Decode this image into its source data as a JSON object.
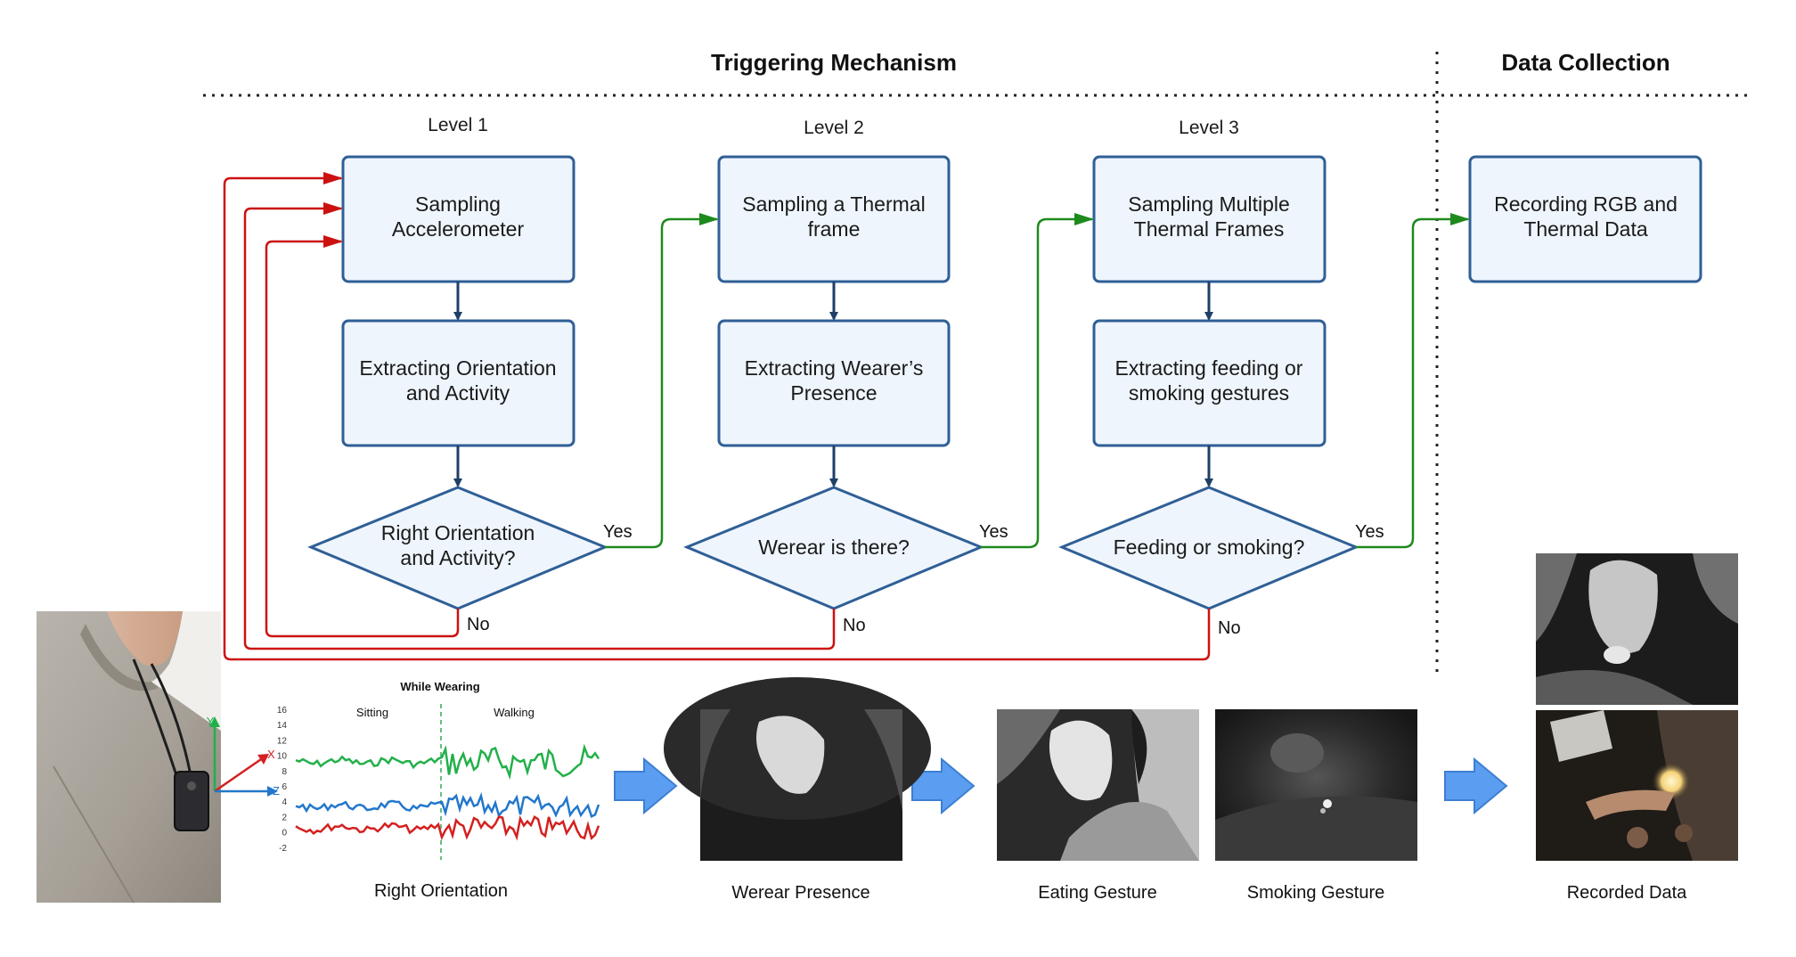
{
  "sections": {
    "triggering": "Triggering Mechanism",
    "collection": "Data Collection"
  },
  "levels": [
    "Level 1",
    "Level 2",
    "Level 3"
  ],
  "boxes": {
    "sampling_accel": [
      "Sampling",
      "Accelerometer"
    ],
    "extract_orient": [
      "Extracting Orientation",
      "and Activity"
    ],
    "sampling_thermal": [
      "Sampling a Thermal",
      "frame"
    ],
    "extract_presence": [
      "Extracting Wearer’s",
      "Presence"
    ],
    "sampling_multi": [
      "Sampling Multiple",
      "Thermal Frames"
    ],
    "extract_gestures": [
      "Extracting feeding or",
      "smoking gestures"
    ],
    "recording": [
      "Recording RGB and",
      "Thermal Data"
    ]
  },
  "decisions": {
    "d1": [
      "Right Orientation",
      "and Activity?"
    ],
    "d2": [
      "Werear is there?"
    ],
    "d3": [
      "Feeding or smoking?"
    ]
  },
  "edge_labels": {
    "yes": "Yes",
    "no": "No"
  },
  "plot": {
    "title": "While Wearing",
    "phase_left": "Sitting",
    "phase_right": "Walking",
    "y_ticks": [
      "16",
      "14",
      "12",
      "10",
      "8",
      "6",
      "4",
      "2",
      "0",
      "-2"
    ],
    "axes": {
      "x": "X",
      "y": "Y",
      "z": "Z"
    }
  },
  "captions": {
    "orientation": "Right Orientation",
    "presence": "Werear Presence",
    "eating": "Eating Gesture",
    "smoking": "Smoking Gesture",
    "recorded": "Recorded Data"
  },
  "colors": {
    "box_stroke": "#2f5f96",
    "box_fill": "#eef5fc",
    "arrow_dark": "#1f3f66",
    "yes_green": "#1e8a1e",
    "no_red": "#cc1111",
    "big_arrow": "#5b9df0",
    "sig_x": "#d42020",
    "sig_y": "#22b04a",
    "sig_z": "#2277cc"
  }
}
